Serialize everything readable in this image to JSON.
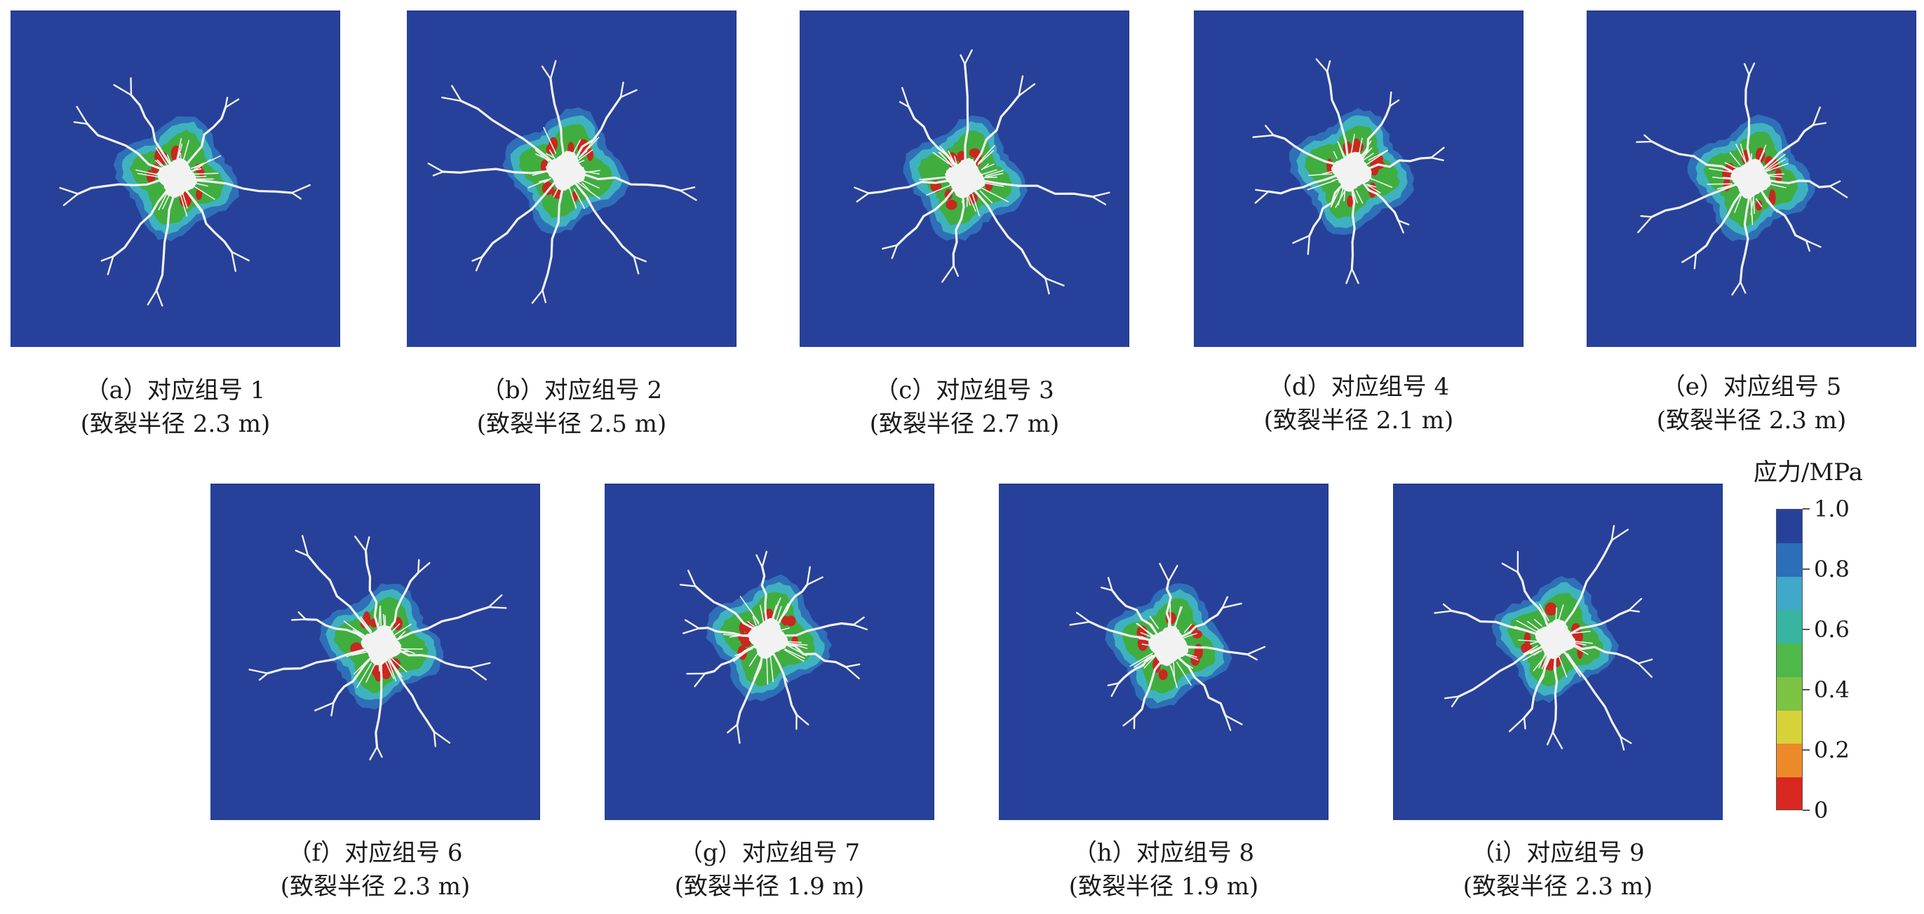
{
  "panels": [
    {
      "line1": "（a）对应组号 1",
      "line2": "(致裂半径 2.3 m)",
      "radius_m": 2.3
    },
    {
      "line1": "（b）对应组号 2",
      "line2": "(致裂半径 2.5 m)",
      "radius_m": 2.5
    },
    {
      "line1": "（c）对应组号 3",
      "line2": "(致裂半径 2.7 m)",
      "radius_m": 2.7
    },
    {
      "line1": "（d）对应组号 4",
      "line2": "(致裂半径 2.1 m)",
      "radius_m": 2.1
    },
    {
      "line1": "（e）对应组号 5",
      "line2": "(致裂半径 2.3 m)",
      "radius_m": 2.3
    },
    {
      "line1": "（f）对应组号 6",
      "line2": "(致裂半径 2.3 m)",
      "radius_m": 2.3
    },
    {
      "line1": "（g）对应组号 7",
      "line2": "(致裂半径 1.9 m)",
      "radius_m": 1.9
    },
    {
      "line1": "（h）对应组号 8",
      "line2": "(致裂半径 1.9 m)",
      "radius_m": 1.9
    },
    {
      "line1": "（i）对应组号 9",
      "line2": "(致裂半径 2.3 m)",
      "radius_m": 2.3
    }
  ],
  "colorbar": {
    "title": "应力/MPa",
    "ticks": [
      "1.0",
      "0.8",
      "0.6",
      "0.4",
      "0.2",
      "0"
    ],
    "colors_top_to_bottom": [
      "#27419a",
      "#2a6fb8",
      "#3fa8c8",
      "#37b5a0",
      "#4fb84a",
      "#7cc243",
      "#d8d23a",
      "#ec8a2a",
      "#d9281f"
    ]
  },
  "colors": {
    "background": "#27419a",
    "crack": "#f2f2f2",
    "stress_outer": "#2f6fb8",
    "stress_mid": "#3fb2c0",
    "stress_green": "#3fae3f",
    "stress_red": "#c8281e"
  }
}
